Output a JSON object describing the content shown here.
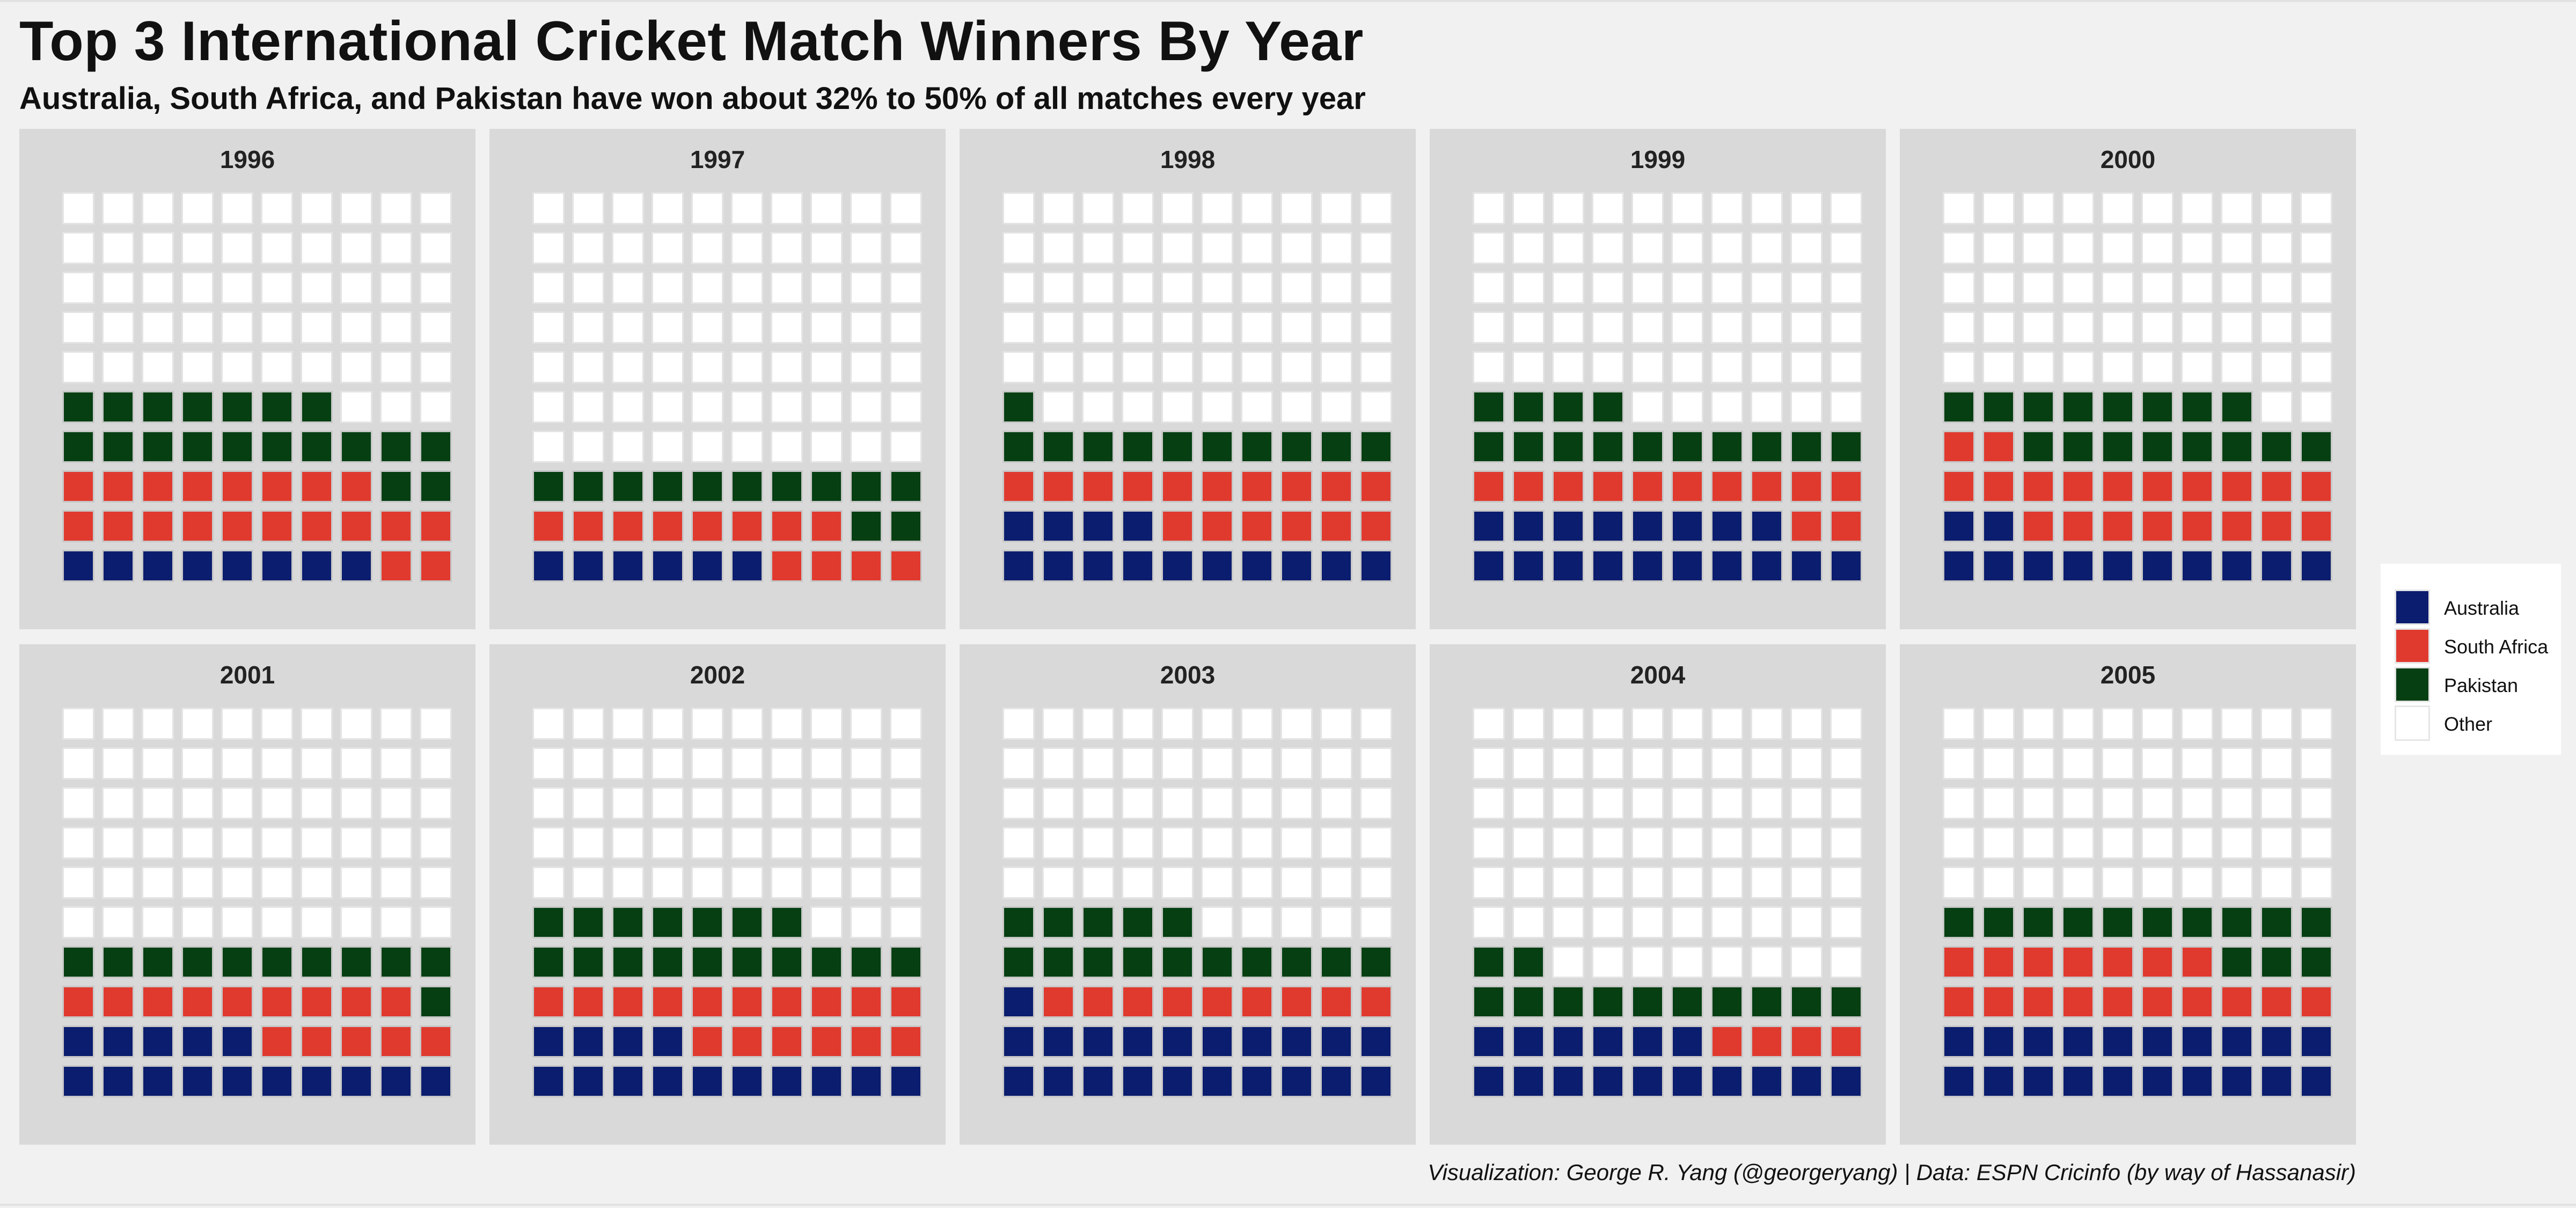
{
  "chart_data": {
    "type": "waffle",
    "title": "Top 3 International Cricket Match Winners By Year",
    "subtitle": "Australia, South Africa, and Pakistan have won about 32% to 50% of all matches every year",
    "caption": "Visualization: George R. Yang (@georgeryang) | Data: ESPN Cricinfo (by way of Hassanasir)",
    "grid": {
      "columns": 10,
      "rows": 10,
      "total_squares": 100,
      "fill_order": "bottom-up, left-to-right"
    },
    "legend_position": "right",
    "series": [
      {
        "name": "Australia",
        "color": "#0b1d6e"
      },
      {
        "name": "South Africa",
        "color": "#e03a2f"
      },
      {
        "name": "Pakistan",
        "color": "#053f12"
      },
      {
        "name": "Other",
        "color": "#ffffff"
      }
    ],
    "panels": [
      {
        "year": "1996",
        "values": {
          "Australia": 8,
          "South Africa": 20,
          "Pakistan": 19,
          "Other": 53
        }
      },
      {
        "year": "1997",
        "values": {
          "Australia": 6,
          "South Africa": 12,
          "Pakistan": 12,
          "Other": 70
        }
      },
      {
        "year": "1998",
        "values": {
          "Australia": 14,
          "South Africa": 16,
          "Pakistan": 11,
          "Other": 59
        }
      },
      {
        "year": "1999",
        "values": {
          "Australia": 18,
          "South Africa": 12,
          "Pakistan": 14,
          "Other": 56
        }
      },
      {
        "year": "2000",
        "values": {
          "Australia": 12,
          "South Africa": 20,
          "Pakistan": 16,
          "Other": 52
        }
      },
      {
        "year": "2001",
        "values": {
          "Australia": 15,
          "South Africa": 14,
          "Pakistan": 11,
          "Other": 60
        }
      },
      {
        "year": "2002",
        "values": {
          "Australia": 14,
          "South Africa": 16,
          "Pakistan": 17,
          "Other": 53
        }
      },
      {
        "year": "2003",
        "values": {
          "Australia": 21,
          "South Africa": 9,
          "Pakistan": 15,
          "Other": 55
        }
      },
      {
        "year": "2004",
        "values": {
          "Australia": 16,
          "South Africa": 4,
          "Pakistan": 12,
          "Other": 68
        }
      },
      {
        "year": "2005",
        "values": {
          "Australia": 20,
          "South Africa": 17,
          "Pakistan": 13,
          "Other": 50
        }
      }
    ]
  }
}
